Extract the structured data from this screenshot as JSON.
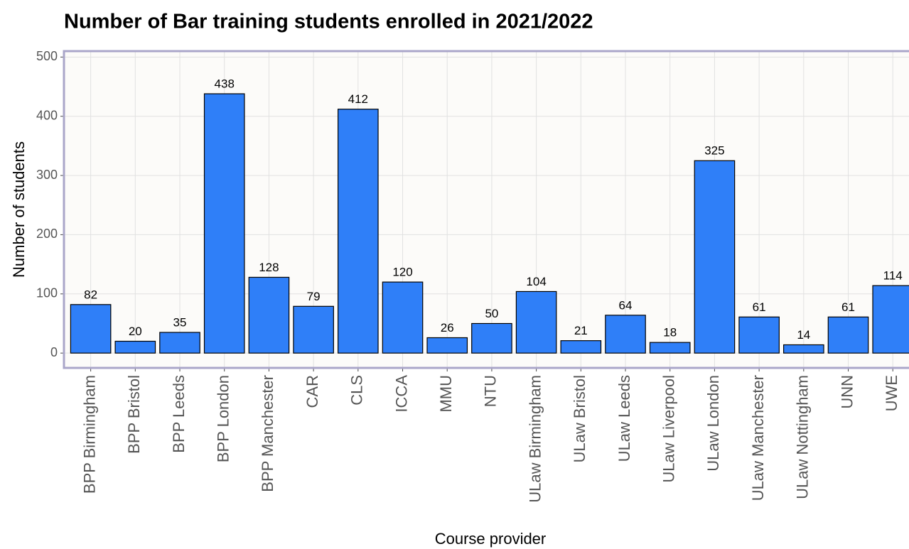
{
  "chart_data": {
    "type": "bar",
    "title": "Number of Bar training students enrolled in 2021/2022",
    "x_label": "Course provider",
    "y_label": "Number of students",
    "categories": [
      "BPP Birmingham",
      "BPP Bristol",
      "BPP Leeds",
      "BPP London",
      "BPP Manchester",
      "CAR",
      "CLS",
      "ICCA",
      "MMU",
      "NTU",
      "ULaw Birmingham",
      "ULaw Bristol",
      "ULaw Leeds",
      "ULaw Liverpool",
      "ULaw London",
      "ULaw Manchester",
      "ULaw Nottingham",
      "UNN",
      "UWE"
    ],
    "values": [
      82,
      20,
      35,
      438,
      128,
      79,
      412,
      120,
      26,
      50,
      104,
      21,
      64,
      18,
      325,
      61,
      14,
      61,
      114
    ],
    "color": "#2f7ff8",
    "ylim": [
      -25,
      510
    ],
    "yticks": [
      0,
      100,
      200,
      300,
      400,
      500
    ],
    "grid": true
  }
}
